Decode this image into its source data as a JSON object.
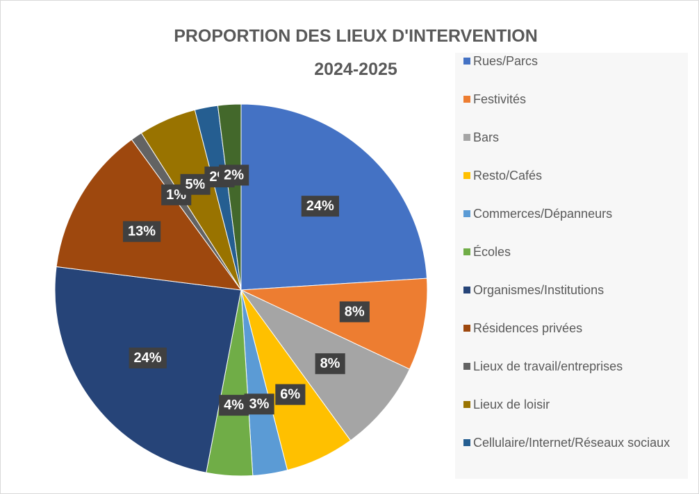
{
  "chart_data": {
    "type": "pie",
    "title": "PROPORTION DES LIEUX D'INTERVENTION",
    "subtitle": "2024-2025",
    "categories": [
      "Rues/Parcs",
      "Festivités",
      "Bars",
      "Resto/Cafés",
      "Commerces/Dépanneurs",
      "Écoles",
      "Organismes/Institutions",
      "Résidences privées",
      "Lieux de travail/entreprises",
      "Lieux de loisir",
      "Cellulaire/Internet/Réseaux sociaux",
      null
    ],
    "values": [
      24,
      8,
      8,
      6,
      3,
      4,
      24,
      13,
      1,
      5,
      2,
      2
    ],
    "value_labels": [
      "24%",
      "8%",
      "8%",
      "6%",
      "3%",
      "4%",
      "24%",
      "13%",
      "1%",
      "5%",
      "2%",
      "2%"
    ],
    "colors": [
      "#4472c4",
      "#ed7d31",
      "#a5a5a5",
      "#ffc000",
      "#5b9bd5",
      "#70ad47",
      "#264478",
      "#9e480e",
      "#636363",
      "#997300",
      "#255e91",
      "#43682b"
    ],
    "legend": "right"
  }
}
